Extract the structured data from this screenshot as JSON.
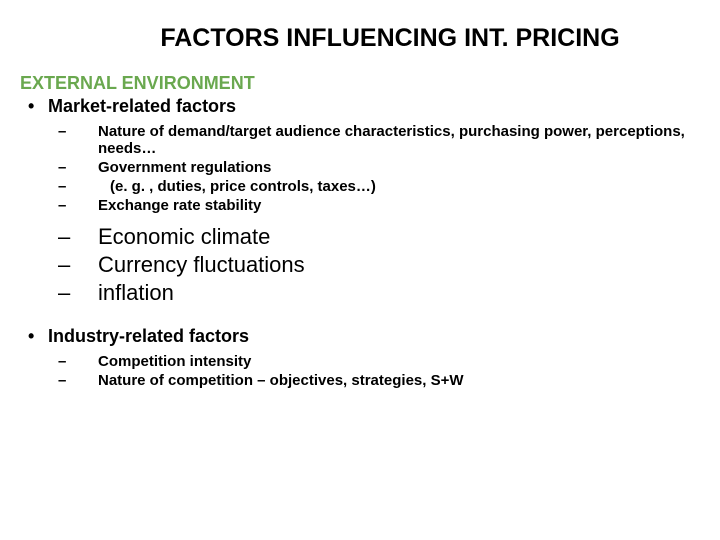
{
  "title": "FACTORS INFLUENCING INT. PRICING",
  "section_header": "EXTERNAL ENVIRONMENT",
  "bullet1": {
    "marker": "•",
    "text": "Market-related factors"
  },
  "market_dashes": [
    {
      "marker": "–",
      "text": "Nature of demand/target audience characteristics, purchasing power, perceptions, needs…"
    },
    {
      "marker": "–",
      "text": "Government regulations"
    },
    {
      "marker": "–",
      "text": "    (e. g. , duties, price controls, taxes…)"
    },
    {
      "marker": "–",
      "text": "Exchange rate stability"
    }
  ],
  "market_large_dashes": [
    {
      "marker": "–",
      "text": "Economic climate"
    },
    {
      "marker": "–",
      "text": "Currency fluctuations"
    },
    {
      "marker": "–",
      "text": "inflation"
    }
  ],
  "bullet2": {
    "marker": "•",
    "text": "Industry-related factors"
  },
  "industry_dashes": [
    {
      "marker": "–",
      "text": "Competition intensity"
    },
    {
      "marker": "–",
      "text": "Nature of competition – objectives, strategies, S+W"
    }
  ],
  "colors": {
    "section_header": "#6aa84f",
    "text": "#000000",
    "background": "#ffffff"
  }
}
